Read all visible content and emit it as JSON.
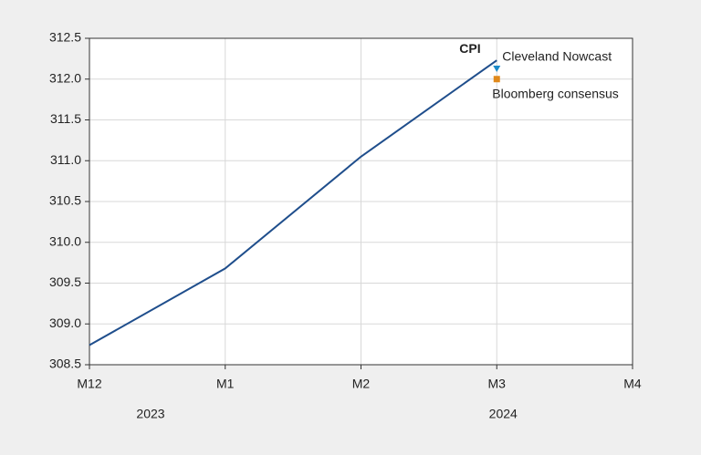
{
  "chart_data": {
    "type": "line",
    "categories": [
      "M12",
      "M1",
      "M2",
      "M3",
      "M4"
    ],
    "year_labels": [
      "2023",
      null,
      null,
      "2024",
      null
    ],
    "series": [
      {
        "name": "CPI",
        "color": "#1f4e8c",
        "marker": "none",
        "values": [
          308.74,
          309.68,
          311.05,
          312.23,
          null
        ]
      },
      {
        "name": "Cleveland Nowcast",
        "color": "#1b8ac9",
        "marker": "triangle",
        "values": [
          null,
          null,
          null,
          312.12,
          null
        ]
      },
      {
        "name": "Bloomberg consensus",
        "color": "#e0891b",
        "marker": "square",
        "values": [
          null,
          null,
          null,
          312.0,
          null
        ]
      }
    ],
    "ylim": [
      308.5,
      312.5
    ],
    "yticks": [
      308.5,
      {
        "value": 309,
        "label": "309.0"
      },
      309.5,
      {
        "value": 310,
        "label": "310.0"
      },
      310.5,
      {
        "value": 311,
        "label": "311.0"
      },
      311.5,
      {
        "value": 312,
        "label": "312.0"
      },
      312.5
    ],
    "grid": true
  }
}
